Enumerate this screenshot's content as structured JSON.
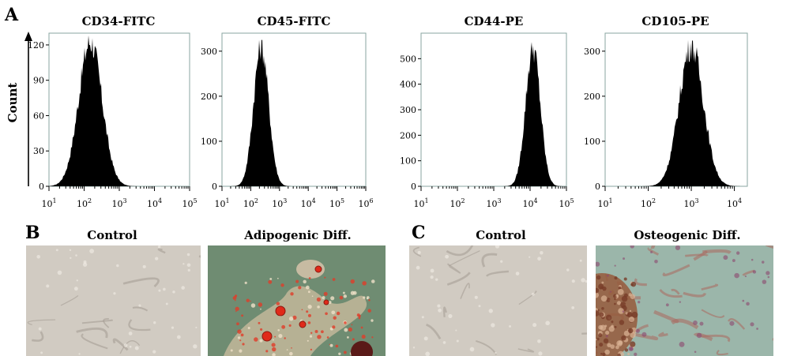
{
  "panels": {
    "a_letter": "A",
    "b_letter": "B",
    "c_letter": "C"
  },
  "count_label": "Count",
  "chart_data": [
    {
      "type": "area",
      "title": "CD34-FITC",
      "ylabel": "Count",
      "x_scale": "log",
      "xlim": [
        10,
        100000
      ],
      "ylim": [
        0,
        130
      ],
      "yticks": [
        "0",
        "30",
        "60",
        "90",
        "120"
      ],
      "xticks": [
        "10^1",
        "10^2",
        "10^3",
        "10^4",
        "10^5"
      ],
      "peak_x": 150,
      "peak_count": 128,
      "spread_decades": 0.33
    },
    {
      "type": "area",
      "title": "CD45-FITC",
      "x_scale": "log",
      "xlim": [
        10,
        1000000
      ],
      "ylim": [
        0,
        340
      ],
      "yticks": [
        "0",
        "100",
        "200",
        "300"
      ],
      "xticks": [
        "10^1",
        "10^2",
        "10^3",
        "10^4",
        "10^5",
        "10^6"
      ],
      "peak_x": 230,
      "peak_count": 325,
      "spread_decades": 0.26
    },
    {
      "type": "area",
      "title": "CD44-PE",
      "x_scale": "log",
      "xlim": [
        10,
        100000
      ],
      "ylim": [
        0,
        600
      ],
      "yticks": [
        "0",
        "100",
        "200",
        "300",
        "400",
        "500"
      ],
      "xticks": [
        "10^1",
        "10^2",
        "10^3",
        "10^4",
        "10^5"
      ],
      "peak_x": 12000,
      "peak_count": 565,
      "spread_decades": 0.2
    },
    {
      "type": "area",
      "title": "CD105-PE",
      "x_scale": "log",
      "xlim": [
        10,
        20000
      ],
      "ylim": [
        0,
        340
      ],
      "yticks": [
        "0",
        "100",
        "200",
        "300"
      ],
      "xticks": [
        "10^1",
        "10^2",
        "10^3",
        "10^4"
      ],
      "peak_x": 1000,
      "peak_count": 325,
      "spread_decades": 0.28
    }
  ],
  "photos": [
    {
      "title": "Control",
      "style": "control-a"
    },
    {
      "title": "Adipogenic Diff.",
      "style": "adipo"
    },
    {
      "title": "Control",
      "style": "control-b"
    },
    {
      "title": "Osteogenic Diff.",
      "style": "osteo"
    }
  ],
  "colors": {
    "frame": "#8aa6a0",
    "fill": "#000000",
    "control_bg": "#cbc4ba",
    "adipo_bg": "#6f8c72",
    "adipo_stain": "#e02a1a",
    "osteo_bg": "#9bb6aa",
    "osteo_stain": "#9a5a3a"
  }
}
